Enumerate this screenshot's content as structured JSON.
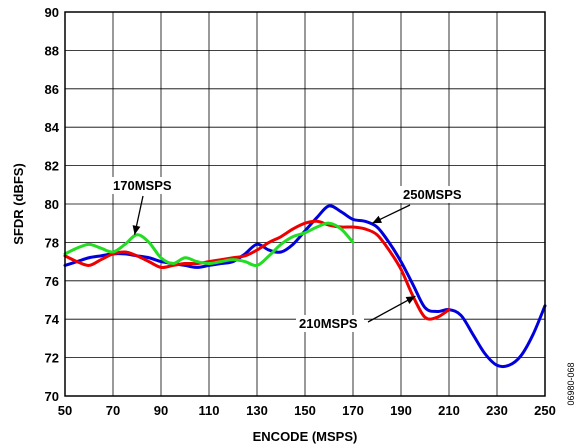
{
  "chart_data": {
    "type": "line",
    "title": "",
    "xlabel": "ENCODE (MSPS)",
    "ylabel": "SFDR (dBFS)",
    "xlim": [
      50,
      250
    ],
    "ylim": [
      70,
      90
    ],
    "x_ticks": [
      "50",
      "70",
      "90",
      "110",
      "130",
      "150",
      "170",
      "190",
      "210",
      "230",
      "250"
    ],
    "y_ticks": [
      "70",
      "72",
      "74",
      "76",
      "78",
      "80",
      "82",
      "84",
      "86",
      "88",
      "90"
    ],
    "grid": true,
    "legend": "none",
    "series": [
      {
        "name": "250MSPS",
        "color": "#0000dd",
        "points": [
          [
            50,
            76.8
          ],
          [
            55,
            77.0
          ],
          [
            60,
            77.2
          ],
          [
            65,
            77.3
          ],
          [
            70,
            77.4
          ],
          [
            75,
            77.4
          ],
          [
            80,
            77.3
          ],
          [
            85,
            77.2
          ],
          [
            90,
            77.0
          ],
          [
            95,
            76.9
          ],
          [
            100,
            76.8
          ],
          [
            105,
            76.7
          ],
          [
            110,
            76.8
          ],
          [
            115,
            76.9
          ],
          [
            120,
            77.0
          ],
          [
            125,
            77.4
          ],
          [
            130,
            77.9
          ],
          [
            135,
            77.6
          ],
          [
            140,
            77.5
          ],
          [
            145,
            77.9
          ],
          [
            150,
            78.6
          ],
          [
            155,
            79.3
          ],
          [
            160,
            79.9
          ],
          [
            165,
            79.6
          ],
          [
            170,
            79.2
          ],
          [
            175,
            79.1
          ],
          [
            180,
            78.8
          ],
          [
            185,
            78.0
          ],
          [
            190,
            77.0
          ],
          [
            195,
            75.8
          ],
          [
            200,
            74.6
          ],
          [
            205,
            74.4
          ],
          [
            210,
            74.5
          ],
          [
            215,
            74.2
          ],
          [
            220,
            73.2
          ],
          [
            225,
            72.2
          ],
          [
            230,
            71.6
          ],
          [
            235,
            71.6
          ],
          [
            240,
            72.1
          ],
          [
            245,
            73.2
          ],
          [
            250,
            74.7
          ]
        ]
      },
      {
        "name": "210MSPS",
        "color": "#ee0000",
        "points": [
          [
            50,
            77.3
          ],
          [
            55,
            77.0
          ],
          [
            60,
            76.8
          ],
          [
            65,
            77.1
          ],
          [
            70,
            77.4
          ],
          [
            75,
            77.5
          ],
          [
            80,
            77.3
          ],
          [
            85,
            77.0
          ],
          [
            90,
            76.7
          ],
          [
            95,
            76.8
          ],
          [
            100,
            76.9
          ],
          [
            105,
            76.9
          ],
          [
            110,
            77.0
          ],
          [
            115,
            77.1
          ],
          [
            120,
            77.2
          ],
          [
            125,
            77.3
          ],
          [
            130,
            77.6
          ],
          [
            135,
            78.0
          ],
          [
            140,
            78.3
          ],
          [
            145,
            78.7
          ],
          [
            150,
            79.0
          ],
          [
            155,
            79.1
          ],
          [
            160,
            78.9
          ],
          [
            165,
            78.8
          ],
          [
            170,
            78.8
          ],
          [
            175,
            78.7
          ],
          [
            180,
            78.4
          ],
          [
            185,
            77.6
          ],
          [
            190,
            76.6
          ],
          [
            195,
            75.2
          ],
          [
            200,
            74.1
          ],
          [
            205,
            74.1
          ],
          [
            210,
            74.5
          ]
        ]
      },
      {
        "name": "170MSPS",
        "color": "#22dd22",
        "points": [
          [
            50,
            77.4
          ],
          [
            55,
            77.7
          ],
          [
            60,
            77.9
          ],
          [
            65,
            77.7
          ],
          [
            70,
            77.5
          ],
          [
            75,
            77.9
          ],
          [
            80,
            78.4
          ],
          [
            85,
            78.0
          ],
          [
            90,
            77.2
          ],
          [
            95,
            76.9
          ],
          [
            100,
            77.2
          ],
          [
            105,
            77.0
          ],
          [
            110,
            76.9
          ],
          [
            115,
            77.0
          ],
          [
            120,
            77.1
          ],
          [
            125,
            77.0
          ],
          [
            130,
            76.8
          ],
          [
            135,
            77.3
          ],
          [
            140,
            77.9
          ],
          [
            145,
            78.3
          ],
          [
            150,
            78.5
          ],
          [
            155,
            78.8
          ],
          [
            160,
            79.0
          ],
          [
            165,
            78.7
          ],
          [
            170,
            78.0
          ]
        ]
      }
    ],
    "annotations": [
      {
        "text": "170MSPS",
        "series": "170MSPS",
        "at": [
          79,
          78.4
        ]
      },
      {
        "text": "250MSPS",
        "series": "250MSPS",
        "at": [
          178,
          79.0
        ]
      },
      {
        "text": "210MSPS",
        "series": "210MSPS",
        "at": [
          196,
          75.2
        ]
      }
    ],
    "figure_id": "06980-068"
  }
}
